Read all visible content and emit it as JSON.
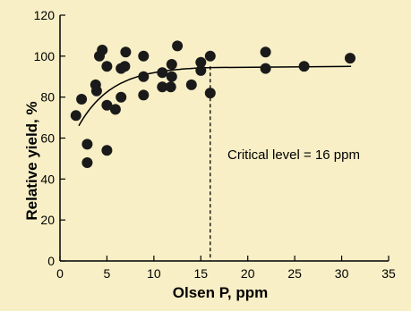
{
  "chart_data": {
    "type": "scatter",
    "title": "",
    "xlabel": "Olsen P, ppm",
    "ylabel": "Relative yield, %",
    "xlim": [
      0,
      35
    ],
    "ylim": [
      0,
      120
    ],
    "xticks": [
      "0",
      "5",
      "10",
      "15",
      "20",
      "25",
      "30",
      "35"
    ],
    "yticks": [
      "0",
      "20",
      "40",
      "60",
      "80",
      "100",
      "120"
    ],
    "grid": false,
    "annotation": "Critical level = 16 ppm",
    "critical_level_x": 16,
    "plateau_y": 95,
    "points": [
      {
        "x": 1.7,
        "y": 71
      },
      {
        "x": 2.3,
        "y": 79
      },
      {
        "x": 2.9,
        "y": 57
      },
      {
        "x": 2.9,
        "y": 48
      },
      {
        "x": 3.8,
        "y": 86
      },
      {
        "x": 3.9,
        "y": 83
      },
      {
        "x": 4.2,
        "y": 100
      },
      {
        "x": 4.5,
        "y": 103
      },
      {
        "x": 5.0,
        "y": 54
      },
      {
        "x": 5.0,
        "y": 76
      },
      {
        "x": 5.0,
        "y": 95
      },
      {
        "x": 5.9,
        "y": 74
      },
      {
        "x": 6.5,
        "y": 94
      },
      {
        "x": 6.5,
        "y": 80
      },
      {
        "x": 6.9,
        "y": 95
      },
      {
        "x": 7.0,
        "y": 102
      },
      {
        "x": 8.9,
        "y": 81
      },
      {
        "x": 8.9,
        "y": 90
      },
      {
        "x": 8.9,
        "y": 100
      },
      {
        "x": 10.9,
        "y": 85
      },
      {
        "x": 10.9,
        "y": 92
      },
      {
        "x": 11.8,
        "y": 85
      },
      {
        "x": 11.9,
        "y": 96
      },
      {
        "x": 11.9,
        "y": 90
      },
      {
        "x": 12.5,
        "y": 105
      },
      {
        "x": 14.0,
        "y": 86
      },
      {
        "x": 15.0,
        "y": 97
      },
      {
        "x": 15.0,
        "y": 93
      },
      {
        "x": 16.0,
        "y": 100
      },
      {
        "x": 16.0,
        "y": 82
      },
      {
        "x": 21.9,
        "y": 94
      },
      {
        "x": 21.9,
        "y": 102
      },
      {
        "x": 26.0,
        "y": 95
      },
      {
        "x": 30.9,
        "y": 99
      }
    ]
  }
}
